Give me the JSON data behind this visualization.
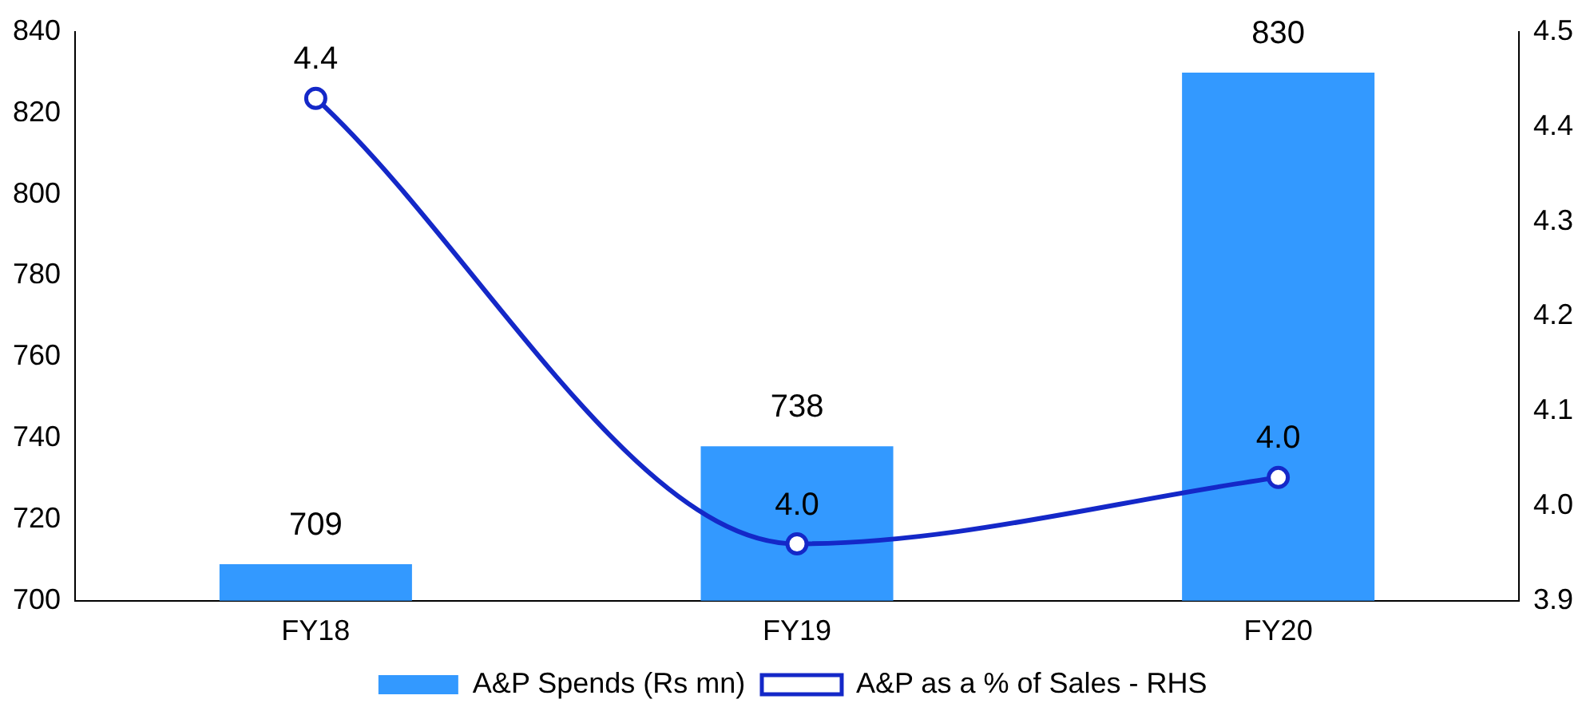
{
  "chart_data": {
    "type": "bar",
    "categories": [
      "FY18",
      "FY19",
      "FY20"
    ],
    "series": [
      {
        "name": "A&P Spends (Rs mn)",
        "color": "#3399ff",
        "values": [
          709,
          738,
          830
        ],
        "value_labels": [
          "709",
          "738",
          "830"
        ]
      },
      {
        "name": "A&P as a % of Sales - RHS",
        "type": "line",
        "axis": "y2",
        "color": "#1428c8",
        "values": [
          4.43,
          3.96,
          4.03
        ],
        "value_labels": [
          "4.4",
          "4.0",
          "4.0"
        ],
        "marker": "circle"
      }
    ],
    "ylim": [
      700,
      840
    ],
    "yticks": [
      700,
      720,
      740,
      760,
      780,
      800,
      820,
      840
    ],
    "y2lim": [
      3.9,
      4.5
    ],
    "y2ticks": [
      {
        "value": 3.9,
        "label": "3.9"
      },
      {
        "value": 4,
        "label": "4.0"
      },
      {
        "value": 4.1,
        "label": "4.1"
      },
      {
        "value": 4.2,
        "label": "4.2"
      },
      {
        "value": 4.3,
        "label": "4.3"
      },
      {
        "value": 4.4,
        "label": "4.4"
      },
      {
        "value": 4.5,
        "label": "4.5"
      }
    ],
    "grid": false,
    "legend": "bottom"
  }
}
